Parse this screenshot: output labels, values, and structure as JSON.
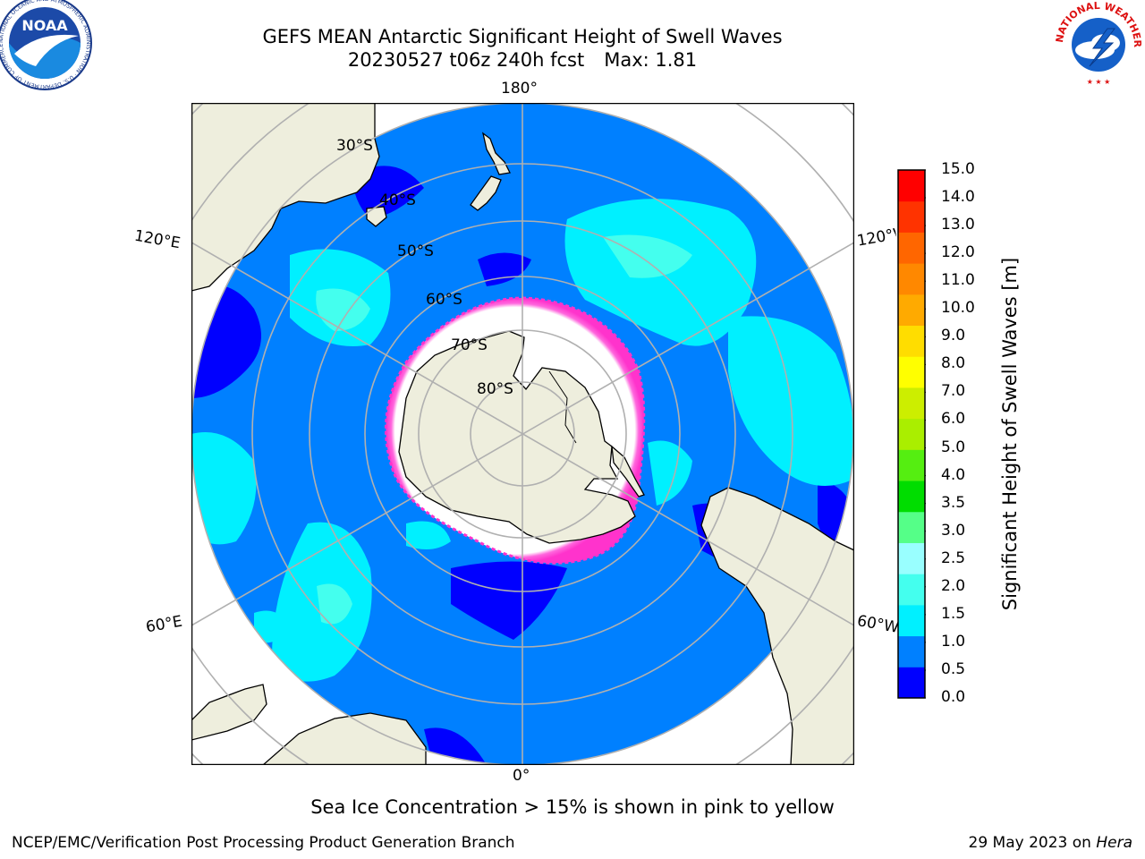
{
  "header": {
    "title": "GEFS MEAN Antarctic Significant Height of Swell Waves",
    "run": "20230527 t06z 240h fcst",
    "max": "Max: 1.81"
  },
  "map": {
    "projection": "south polar stereographic",
    "longitude_labels": {
      "top": "180°",
      "bottom": "0°",
      "upper_left": "120°E",
      "upper_right": "120°W",
      "lower_left": "60°E",
      "lower_right": "60°W"
    },
    "latitude_labels": [
      "30°S",
      "40°S",
      "50°S",
      "60°S",
      "70°S",
      "80°S"
    ],
    "colors": {
      "land": "#eeeedd",
      "grid": "#b0b0b0",
      "ice_fringe": "#ff44cc",
      "ice_core": "#ffffff"
    }
  },
  "colorbar": {
    "label": "Significant Height of Swell Waves [m]",
    "ticks": [
      "0.0",
      "0.5",
      "1.0",
      "1.5",
      "2.0",
      "2.5",
      "3.0",
      "3.5",
      "4.0",
      "5.0",
      "6.0",
      "7.0",
      "8.0",
      "9.0",
      "10.0",
      "11.0",
      "12.0",
      "13.0",
      "14.0",
      "15.0"
    ],
    "colors": [
      "#0000ff",
      "#0080ff",
      "#00f0ff",
      "#44ffee",
      "#99ffff",
      "#55ff88",
      "#00dd00",
      "#55ee11",
      "#aaee00",
      "#ccee00",
      "#ffff00",
      "#ffdd00",
      "#ffaa00",
      "#ff8800",
      "#ff6600",
      "#ff3300",
      "#ff0000"
    ]
  },
  "note": "Sea Ice Concentration > 15% is shown in pink to yellow",
  "footer": {
    "left": "NCEP/EMC/Verification Post Processing Product Generation Branch",
    "date": "29 May 2023 on",
    "machine": "Hera"
  },
  "logos": {
    "noaa": "NOAA",
    "noaa_ring": "NATIONAL OCEANIC AND ATMOSPHERIC ADMINISTRATION · U.S. DEPARTMENT OF COMMERCE",
    "nws_ring": "NATIONAL WEATHER SERVICE"
  }
}
